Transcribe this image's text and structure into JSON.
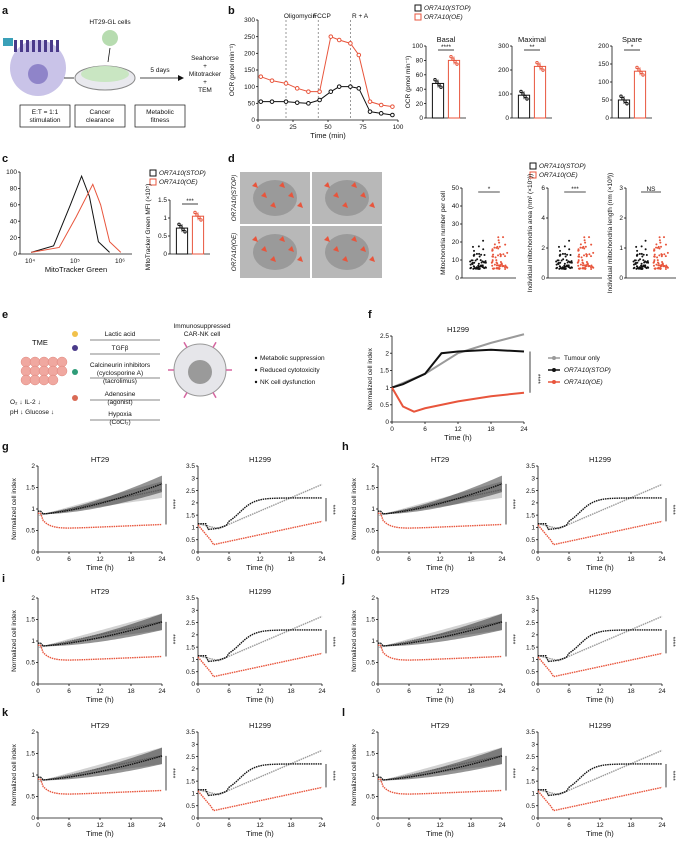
{
  "colors": {
    "stop": "#111111",
    "oe": "#e8553c",
    "tumour": "#9a9a9a",
    "cell": "#c9c3e8",
    "tme": "#f0a8a0"
  },
  "panels": [
    "a",
    "b",
    "c",
    "d",
    "e",
    "f",
    "g",
    "h",
    "i",
    "j",
    "k",
    "l"
  ],
  "panel_a": {
    "top_label": "HT29-GL cells",
    "step": "5 days",
    "readout": [
      "Seahorse",
      "+",
      "Mitotracker",
      "+",
      "TEM"
    ],
    "boxes": [
      [
        "E:T = 1:1",
        "stimulation"
      ],
      [
        "Cancer",
        "clearance"
      ],
      [
        "Metabolic",
        "fitness"
      ]
    ]
  },
  "legend": {
    "stop": "OR7A10(STOP)",
    "oe": "OR7A10(OE)",
    "tumour": "Tumour only"
  },
  "panel_e": {
    "tme": "TME",
    "factors": [
      "Lactic acid",
      "TGFβ",
      "Calcineurin inhibitors",
      "(cyclosporine A)",
      "(tacrolimus)",
      "Adenosine",
      "(agonist)",
      "Hypoxia",
      "(CoCl₂)"
    ],
    "cell_label": [
      "Immunosuppressed",
      "CAR-NK cell"
    ],
    "conditions": [
      "O₂ ↓  IL-2 ↓",
      "pH ↓  Glucose ↓"
    ],
    "outcomes": [
      "Metabolic suppression",
      "Reduced cytotoxicity",
      "NK cell dysfunction"
    ]
  },
  "panel_d": {
    "row_labels": [
      "OR7A10(STOP)",
      "OR7A10(OE)"
    ]
  },
  "chart_data": [
    {
      "id": "b-ocr",
      "type": "line",
      "ylabel": "OCR (pmol min⁻¹)",
      "xlabel": "Time (min)",
      "xlim": [
        0,
        100
      ],
      "ylim": [
        0,
        300
      ],
      "xticks": [
        0,
        25,
        50,
        75,
        100
      ],
      "yticks": [
        0,
        50,
        100,
        150,
        200,
        250,
        300
      ],
      "annotations": [
        "Oligomycin",
        "FCCP",
        "R + A"
      ],
      "injections": [
        20,
        43,
        66
      ],
      "series": [
        {
          "name": "OR7A10(STOP)",
          "x": [
            2,
            10,
            20,
            28,
            36,
            44,
            52,
            58,
            66,
            72,
            80,
            88,
            96
          ],
          "y": [
            55,
            55,
            55,
            52,
            50,
            60,
            85,
            100,
            100,
            95,
            25,
            20,
            15
          ]
        },
        {
          "name": "OR7A10(OE)",
          "x": [
            2,
            10,
            20,
            28,
            36,
            44,
            52,
            58,
            66,
            72,
            80,
            88,
            96
          ],
          "y": [
            130,
            118,
            110,
            95,
            85,
            85,
            250,
            240,
            230,
            195,
            55,
            45,
            40
          ]
        }
      ]
    },
    {
      "id": "b-basal",
      "type": "bar",
      "title": "Basal",
      "ylabel": "OCR (pmol min⁻¹)",
      "categories": [
        "STOP",
        "OE"
      ],
      "values": [
        48,
        80
      ],
      "ylim": [
        0,
        100
      ],
      "yticks": [
        0,
        20,
        40,
        60,
        80,
        100
      ],
      "sig": "****"
    },
    {
      "id": "b-maximal",
      "type": "bar",
      "title": "Maximal",
      "categories": [
        "STOP",
        "OE"
      ],
      "values": [
        95,
        215
      ],
      "ylim": [
        0,
        300
      ],
      "yticks": [
        0,
        100,
        200,
        300
      ],
      "sig": "**"
    },
    {
      "id": "b-spare",
      "type": "bar",
      "title": "Spare",
      "categories": [
        "STOP",
        "OE"
      ],
      "values": [
        50,
        130
      ],
      "ylim": [
        0,
        200
      ],
      "yticks": [
        0,
        50,
        100,
        150,
        200
      ],
      "sig": "*"
    },
    {
      "id": "c-hist",
      "type": "line",
      "xlabel": "MitoTracker Green",
      "yticks": [
        0,
        20,
        40,
        60,
        80,
        100
      ],
      "xticks_text": [
        "10⁴",
        "10⁵",
        "10⁶"
      ]
    },
    {
      "id": "c-mfi",
      "type": "bar",
      "ylabel": "MitoTracker Green MFI (×10⁵)",
      "categories": [
        "STOP",
        "OE"
      ],
      "values": [
        0.72,
        1.05
      ],
      "ylim": [
        0,
        1.5
      ],
      "yticks": [
        0,
        0.5,
        1.0,
        1.5
      ],
      "sig": "***"
    },
    {
      "id": "d-number",
      "type": "scatter",
      "ylabel": "Mitochondria number per cell",
      "yticks": [
        0,
        10,
        20,
        30,
        40,
        50
      ],
      "sig": "*"
    },
    {
      "id": "d-area",
      "type": "scatter",
      "ylabel": "Individual mitochondria area (nm² (×10⁵))",
      "yticks": [
        0,
        2,
        4,
        6
      ],
      "sig": "***"
    },
    {
      "id": "d-length",
      "type": "scatter",
      "ylabel": "Individual mitochondria length (nm (×10³))",
      "yticks": [
        0,
        1,
        2,
        3
      ],
      "sig": "NS"
    },
    {
      "id": "f",
      "type": "line",
      "title": "H1299",
      "ylabel": "Normalized cell index",
      "xlabel": "Time (h)",
      "ylim": [
        0,
        2.5
      ],
      "yticks": [
        0,
        0.5,
        1.0,
        1.5,
        2.0,
        2.5
      ],
      "xticks": [
        0,
        6,
        12,
        18,
        24
      ],
      "series": [
        {
          "name": "Tumour only",
          "x": [
            0,
            6,
            12,
            18,
            24
          ],
          "y": [
            1.0,
            1.4,
            2.0,
            2.3,
            2.55
          ]
        },
        {
          "name": "OR7A10(STOP)",
          "x": [
            0,
            2,
            6,
            9,
            12,
            18,
            24
          ],
          "y": [
            1.0,
            1.1,
            1.4,
            2.0,
            2.05,
            2.1,
            2.05
          ]
        },
        {
          "name": "OR7A10(OE)",
          "x": [
            0,
            2,
            4,
            6,
            12,
            18,
            24
          ],
          "y": [
            1.0,
            0.45,
            0.3,
            0.4,
            0.6,
            0.75,
            0.85
          ]
        }
      ],
      "sig": "****"
    }
  ],
  "small_charts": {
    "titles": [
      "HT29",
      "H1299"
    ],
    "ylabel": "Normalized cell index",
    "xlabel": "Time (h)",
    "sig": "****",
    "xticks": [
      0,
      6,
      12,
      18,
      24
    ],
    "ht29_yticks": [
      0,
      0.5,
      1.0,
      1.5,
      2.0
    ],
    "h1299_yticks": [
      0,
      0.5,
      1.0,
      1.5,
      2.0,
      2.5,
      3.0,
      3.5
    ]
  }
}
